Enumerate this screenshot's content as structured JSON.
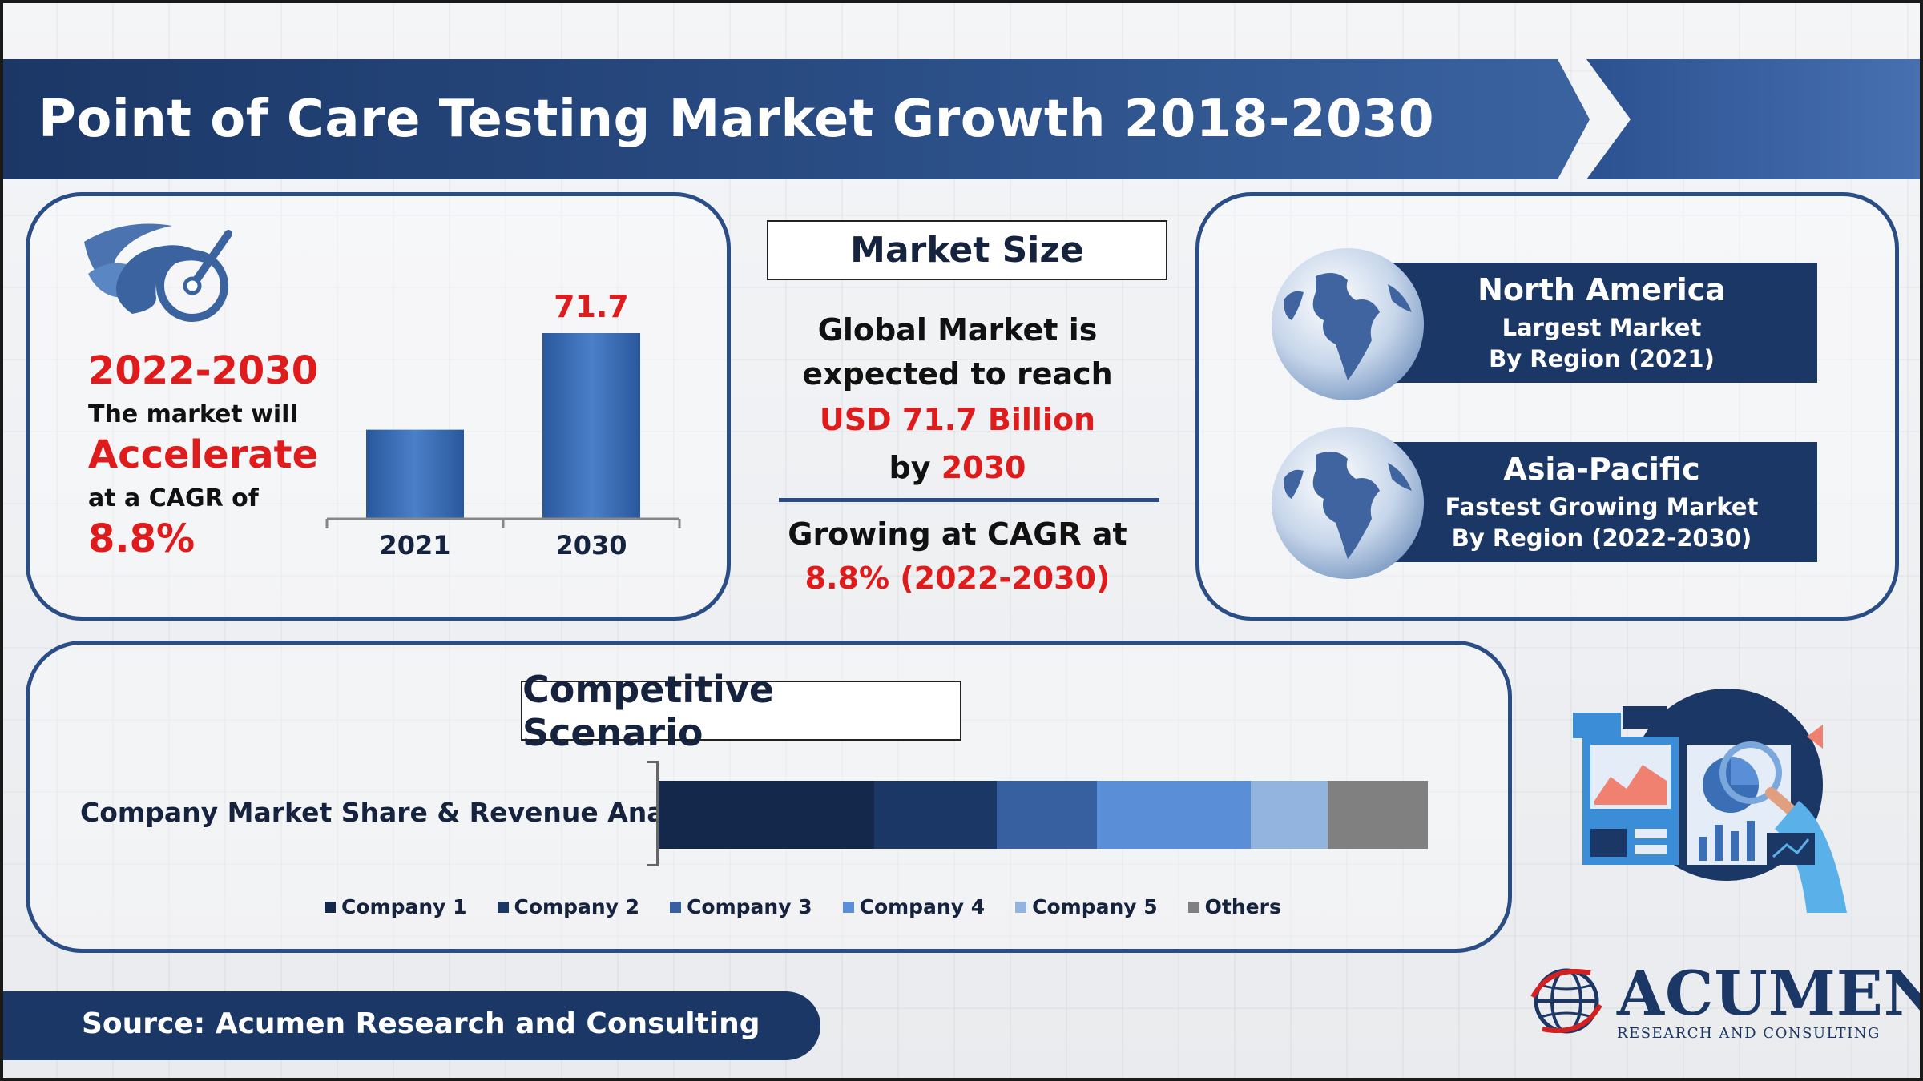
{
  "header": {
    "title": "Point of Care Testing Market Growth 2018-2030"
  },
  "left_panel": {
    "range": "2022-2030",
    "market_will": "The market will",
    "accelerate": "Accelerate",
    "cagr_of": "at a CAGR of",
    "cagr_value": "8.8%"
  },
  "market_size": {
    "title": "Market Size",
    "line1": "Global Market is",
    "line2": "expected to reach",
    "value": "USD 71.7 Billion",
    "by_prefix": "by ",
    "by_year": "2030",
    "growing": "Growing at CAGR at",
    "growing_value": "8.8% (2022-2030)"
  },
  "regions": [
    {
      "name": "North America",
      "line1": "Largest Market",
      "line2": "By Region (2021)"
    },
    {
      "name": "Asia-Pacific",
      "line1": "Fastest Growing Market",
      "line2": "By Region (2022-2030)"
    }
  ],
  "competitive": {
    "title": "Competitive Scenario",
    "label": "Company Market Share & Revenue Analysis"
  },
  "footer": {
    "source": "Source: Acumen Research and Consulting"
  },
  "logo": {
    "name": "ACUMEN",
    "tagline": "RESEARCH AND CONSULTING"
  },
  "colors": {
    "primary": "#1b3766",
    "accent_red": "#e01b1b",
    "bar_blue": "#3a6fb5"
  },
  "chart_data": [
    {
      "type": "bar",
      "categories": [
        "2021",
        "2030"
      ],
      "values": [
        null,
        71.7
      ],
      "data_labels": [
        "",
        "71.7"
      ],
      "relative_heights": [
        0.48,
        1.0
      ]
    },
    {
      "type": "bar",
      "orientation": "horizontal-stacked",
      "series": [
        {
          "name": "Company 1",
          "value": 28,
          "color": "#13284a"
        },
        {
          "name": "Company 2",
          "value": 16,
          "color": "#1b3766"
        },
        {
          "name": "Company 3",
          "value": 13,
          "color": "#36609f"
        },
        {
          "name": "Company 4",
          "value": 20,
          "color": "#5a8fd8"
        },
        {
          "name": "Company 5",
          "value": 10,
          "color": "#94b4e0"
        },
        {
          "name": "Others",
          "value": 13,
          "color": "#808080"
        }
      ]
    }
  ]
}
